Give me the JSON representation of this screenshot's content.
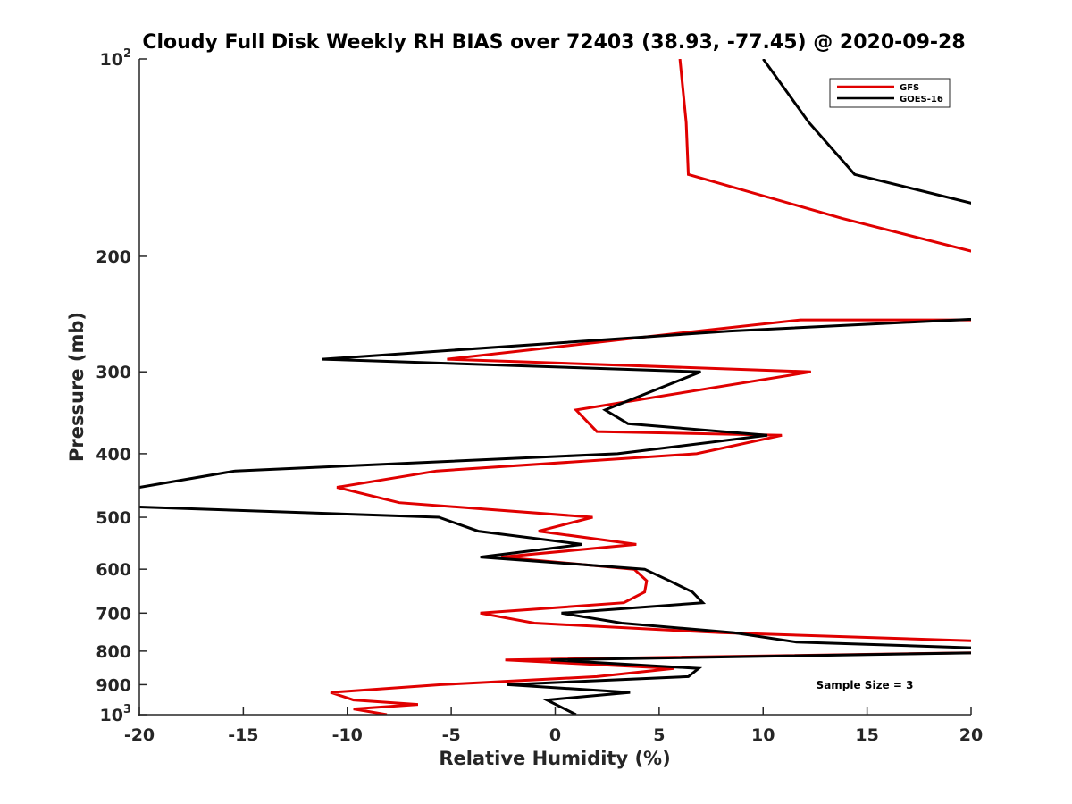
{
  "chart_data": {
    "type": "line",
    "title": "Cloudy Full Disk Weekly RH BIAS over 72403 (38.93, -77.45) @ 2020-09-28",
    "xlabel": "Relative Humidity (%)",
    "ylabel": "Pressure (mb)",
    "xlim": [
      -20,
      20
    ],
    "ylim": [
      100,
      1000
    ],
    "y_scale": "log",
    "y_reversed": true,
    "grid": false,
    "legend_position": "top-right",
    "x_ticks": [
      -20,
      -15,
      -10,
      -5,
      0,
      5,
      10,
      15,
      20
    ],
    "x_tick_labels": [
      "-20",
      "-15",
      "-10",
      "-5",
      "0",
      "5",
      "10",
      "15",
      "20"
    ],
    "y_ticks": [
      100,
      200,
      300,
      400,
      500,
      600,
      700,
      800,
      900,
      1000
    ],
    "y_tick_labels": [
      {
        "base": "10",
        "exp": "2"
      },
      {
        "base": "200",
        "exp": ""
      },
      {
        "base": "300",
        "exp": ""
      },
      {
        "base": "400",
        "exp": ""
      },
      {
        "base": "500",
        "exp": ""
      },
      {
        "base": "600",
        "exp": ""
      },
      {
        "base": "700",
        "exp": ""
      },
      {
        "base": "800",
        "exp": ""
      },
      {
        "base": "900",
        "exp": ""
      },
      {
        "base": "10",
        "exp": "3"
      }
    ],
    "annotation": "Sample Size = 3",
    "series": [
      {
        "name": "GFS",
        "color": "#e00000",
        "points": [
          {
            "p": 100,
            "rh": 6.0
          },
          {
            "p": 125,
            "rh": 6.3
          },
          {
            "p": 150,
            "rh": 6.4
          },
          {
            "p": 175,
            "rh": 13.8
          },
          {
            "p": 200,
            "rh": 21.0
          },
          {
            "p": 250,
            "rh": 26.0
          },
          {
            "p": 250,
            "rh": 11.8
          },
          {
            "p": 265,
            "rh": 4.5
          },
          {
            "p": 287,
            "rh": -5.2
          },
          {
            "p": 300,
            "rh": 12.3
          },
          {
            "p": 343,
            "rh": 1.0
          },
          {
            "p": 370,
            "rh": 2.0
          },
          {
            "p": 375,
            "rh": 10.9
          },
          {
            "p": 400,
            "rh": 6.8
          },
          {
            "p": 425,
            "rh": -5.7
          },
          {
            "p": 450,
            "rh": -10.5
          },
          {
            "p": 475,
            "rh": -7.5
          },
          {
            "p": 500,
            "rh": 1.8
          },
          {
            "p": 525,
            "rh": -0.8
          },
          {
            "p": 550,
            "rh": 3.9
          },
          {
            "p": 575,
            "rh": -2.6
          },
          {
            "p": 600,
            "rh": 3.8
          },
          {
            "p": 625,
            "rh": 4.4
          },
          {
            "p": 650,
            "rh": 4.3
          },
          {
            "p": 675,
            "rh": 3.3
          },
          {
            "p": 700,
            "rh": -3.6
          },
          {
            "p": 725,
            "rh": -1.0
          },
          {
            "p": 750,
            "rh": 8.0
          },
          {
            "p": 775,
            "rh": 22.0
          },
          {
            "p": 800,
            "rh": 25.0
          },
          {
            "p": 825,
            "rh": -2.4
          },
          {
            "p": 850,
            "rh": 5.7
          },
          {
            "p": 875,
            "rh": 2.0
          },
          {
            "p": 900,
            "rh": -5.5
          },
          {
            "p": 925,
            "rh": -10.8
          },
          {
            "p": 950,
            "rh": -9.7
          },
          {
            "p": 965,
            "rh": -6.6
          },
          {
            "p": 980,
            "rh": -9.7
          },
          {
            "p": 1000,
            "rh": -8.1
          }
        ]
      },
      {
        "name": "GOES-16",
        "color": "#000000",
        "points": [
          {
            "p": 100,
            "rh": 10.0
          },
          {
            "p": 125,
            "rh": 12.2
          },
          {
            "p": 150,
            "rh": 14.4
          },
          {
            "p": 175,
            "rh": 23.0
          },
          {
            "p": 245,
            "rh": 25.0
          },
          {
            "p": 260,
            "rh": 8.4
          },
          {
            "p": 287,
            "rh": -11.2
          },
          {
            "p": 300,
            "rh": 7.0
          },
          {
            "p": 343,
            "rh": 2.4
          },
          {
            "p": 360,
            "rh": 3.5
          },
          {
            "p": 375,
            "rh": 10.2
          },
          {
            "p": 400,
            "rh": 3.0
          },
          {
            "p": 425,
            "rh": -15.4
          },
          {
            "p": 450,
            "rh": -20.0
          },
          {
            "p": 475,
            "rh": -26.0
          },
          {
            "p": 500,
            "rh": -5.6
          },
          {
            "p": 525,
            "rh": -3.7
          },
          {
            "p": 550,
            "rh": 1.3
          },
          {
            "p": 575,
            "rh": -3.6
          },
          {
            "p": 600,
            "rh": 4.3
          },
          {
            "p": 625,
            "rh": 5.5
          },
          {
            "p": 650,
            "rh": 6.6
          },
          {
            "p": 675,
            "rh": 7.1
          },
          {
            "p": 700,
            "rh": 0.3
          },
          {
            "p": 725,
            "rh": 3.2
          },
          {
            "p": 750,
            "rh": 8.6
          },
          {
            "p": 775,
            "rh": 11.6
          },
          {
            "p": 800,
            "rh": 25.0
          },
          {
            "p": 825,
            "rh": -0.2
          },
          {
            "p": 850,
            "rh": 6.9
          },
          {
            "p": 875,
            "rh": 6.4
          },
          {
            "p": 900,
            "rh": -2.3
          },
          {
            "p": 925,
            "rh": 3.6
          },
          {
            "p": 950,
            "rh": -0.4
          },
          {
            "p": 1000,
            "rh": 1.0
          }
        ]
      }
    ]
  }
}
